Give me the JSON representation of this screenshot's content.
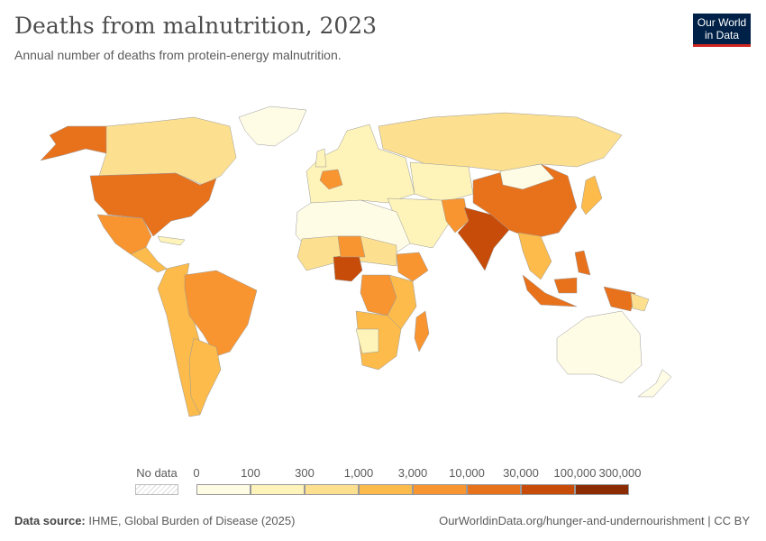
{
  "title": "Deaths from malnutrition, 2023",
  "subtitle": "Annual number of deaths from protein-energy malnutrition.",
  "logo": {
    "line1": "Our World",
    "line2": "in Data"
  },
  "legend": {
    "no_data_label": "No data",
    "ticks": [
      "0",
      "100",
      "300",
      "1,000",
      "3,000",
      "10,000",
      "30,000",
      "100,000",
      "300,000"
    ],
    "colors": [
      "#fffce6",
      "#fef3b8",
      "#fde08f",
      "#fcbb4b",
      "#f99530",
      "#e8721c",
      "#c84c09",
      "#8b2c04"
    ]
  },
  "footer": {
    "source_label": "Data source:",
    "source": "IHME, Global Burden of Disease (2025)",
    "link": "OurWorldinData.org/hunger-and-undernourishment | CC BY"
  }
}
